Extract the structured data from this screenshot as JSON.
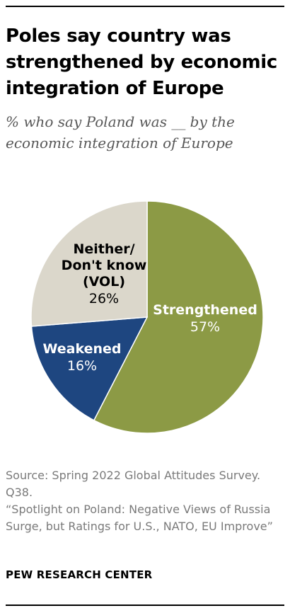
{
  "title": "Poles say country was strengthened by economic integration of Europe",
  "subtitle": "% who say Poland was __ by the economic integration of Europe",
  "chart_data": {
    "type": "pie",
    "slices": [
      {
        "label": "Strengthened",
        "value": 57,
        "value_label": "57%",
        "color": "#8c9a45"
      },
      {
        "label": "Weakened",
        "value": 16,
        "value_label": "16%",
        "color": "#1e4680"
      },
      {
        "label": "Neither/ Don't know (VOL)",
        "label_lines": [
          "Neither/",
          "Don't know",
          "(VOL)"
        ],
        "value": 26,
        "value_label": "26%",
        "color": "#dbd7cb"
      }
    ],
    "start_angle_deg": 0,
    "direction": "clockwise",
    "slice_border_color": "#ffffff"
  },
  "source": {
    "line1": "Source: Spring 2022 Global Attitudes Survey. Q38.",
    "line2": "“Spotlight on Poland: Negative Views of Russia Surge, but Ratings for U.S., NATO, EU Improve”"
  },
  "brand": "PEW RESEARCH CENTER"
}
